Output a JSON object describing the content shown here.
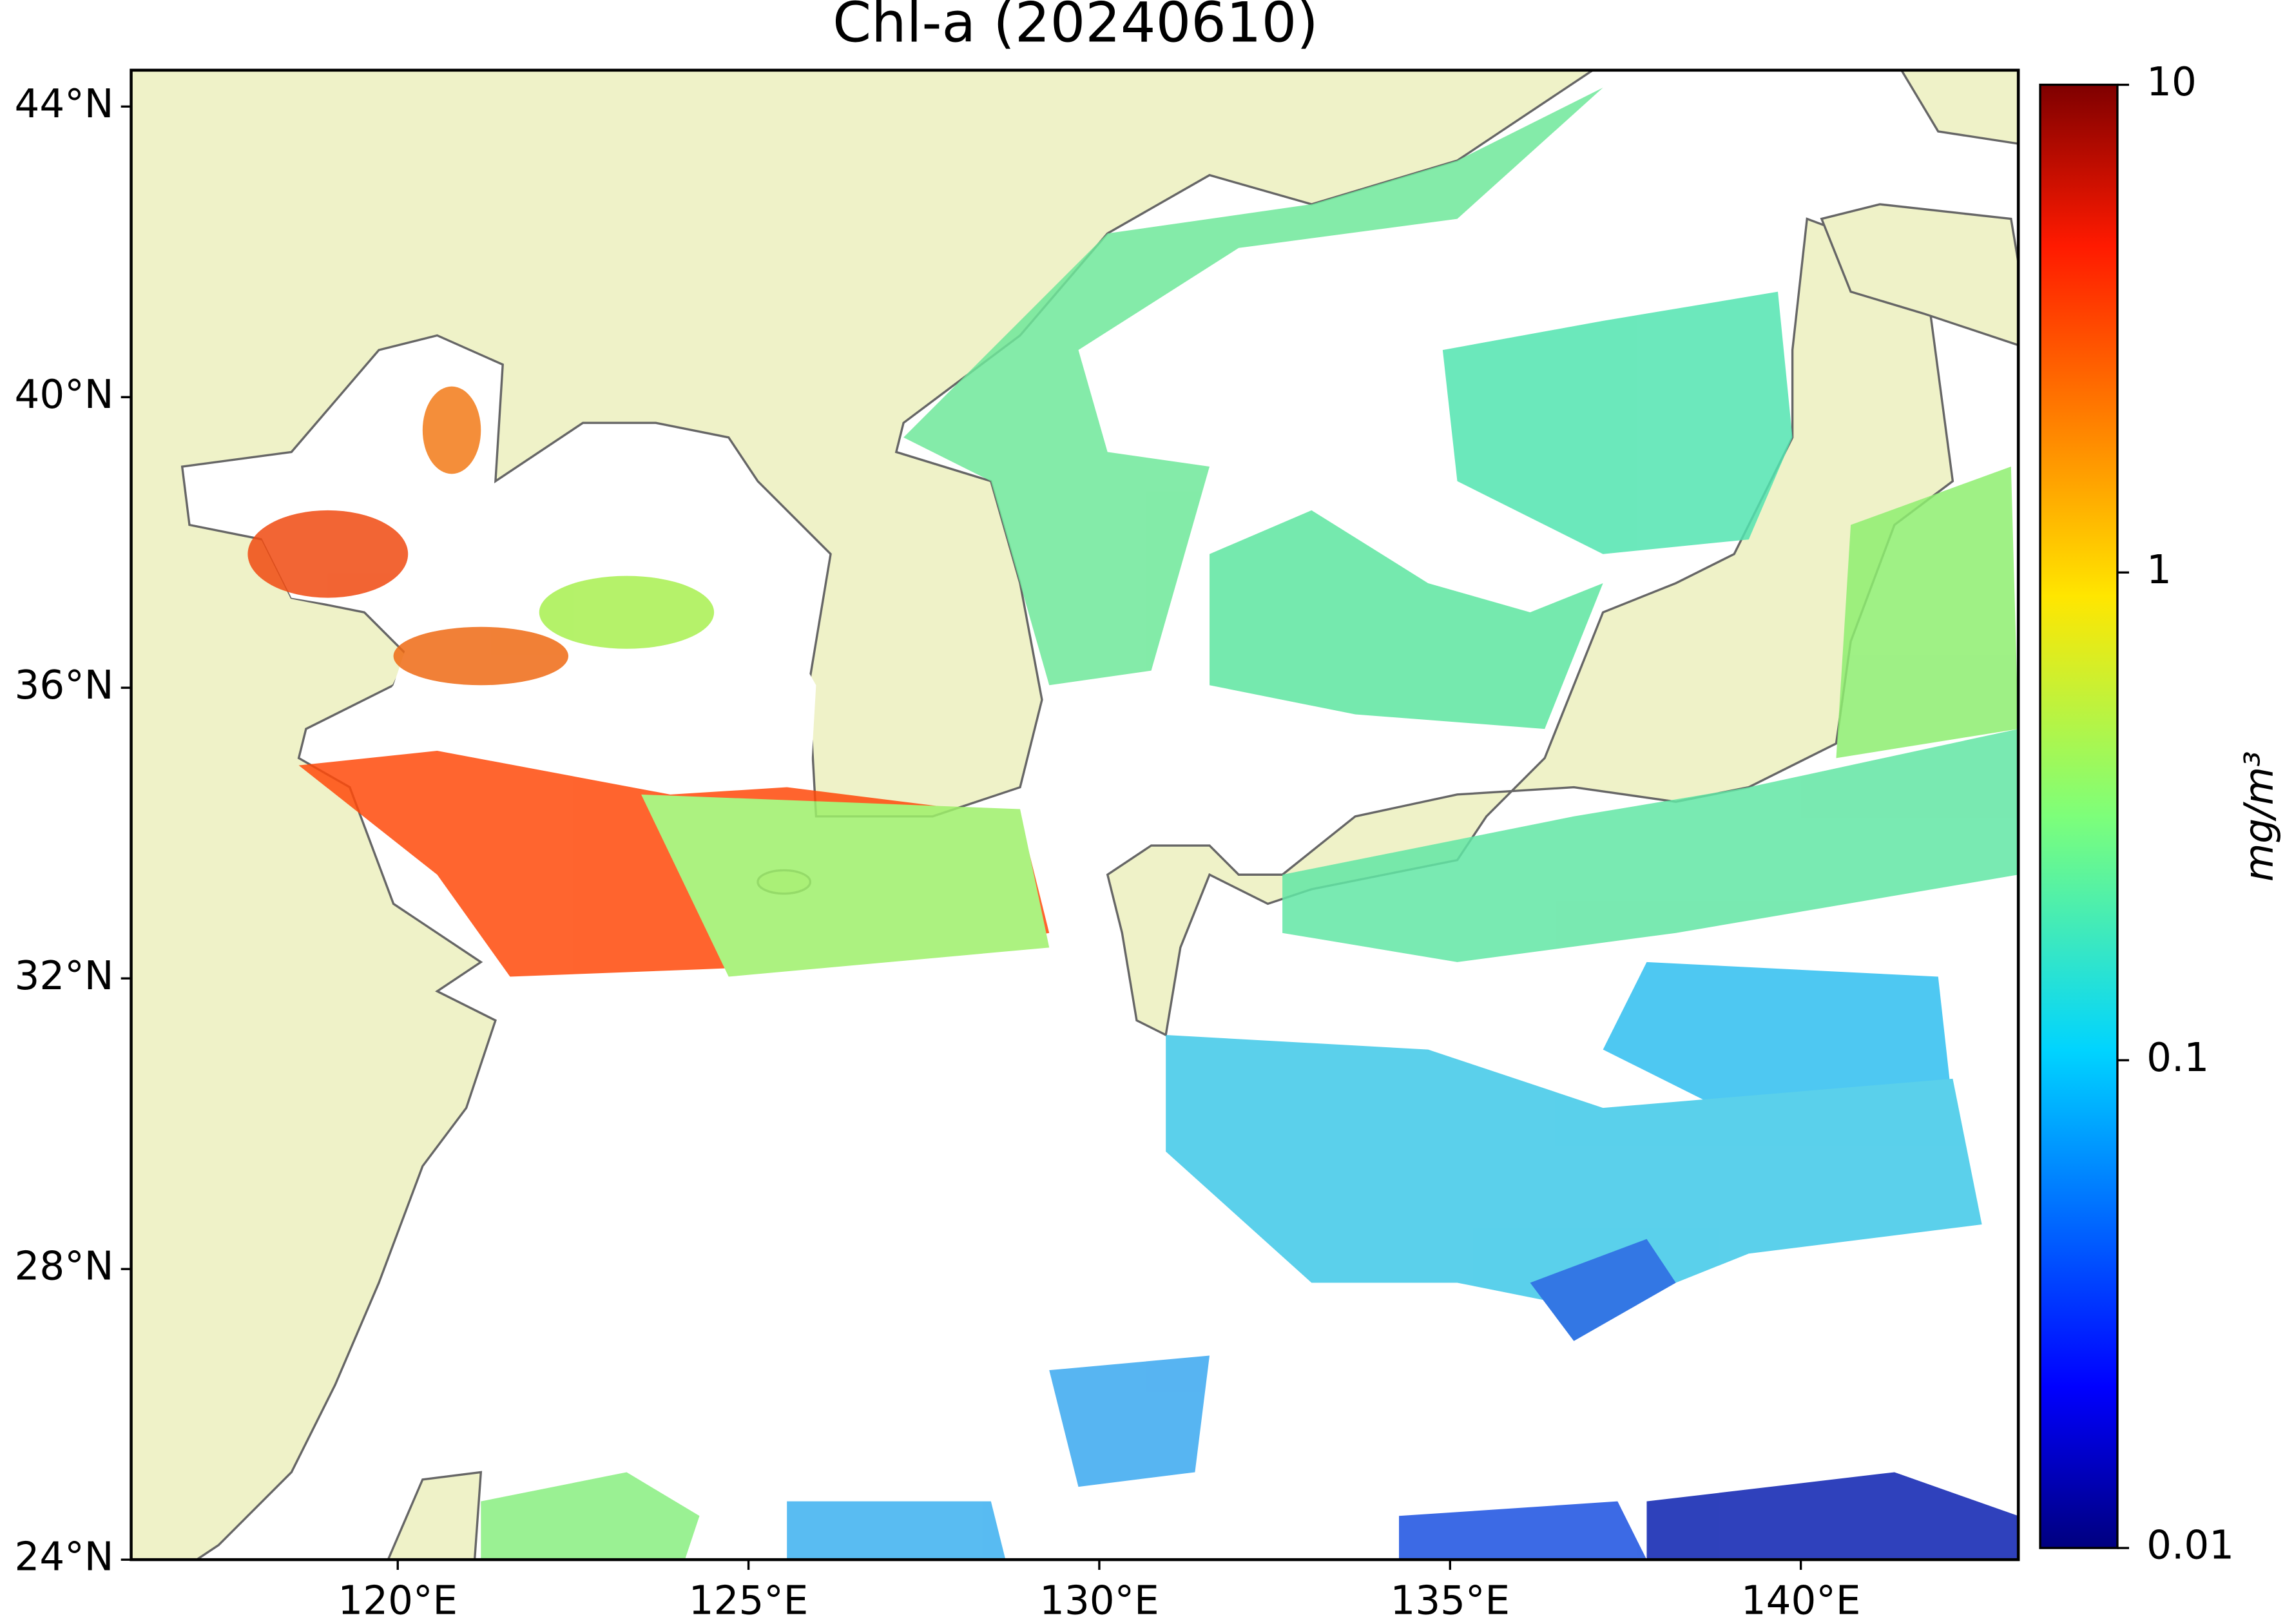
{
  "chart_data": {
    "type": "map",
    "title": "Chl-a (20240610)",
    "xlim": [
      116.2,
      143.1
    ],
    "ylim": [
      24,
      44.5
    ],
    "xticks": [
      {
        "value": 120,
        "label": "120°E"
      },
      {
        "value": 125,
        "label": "125°E"
      },
      {
        "value": 130,
        "label": "130°E"
      },
      {
        "value": 135,
        "label": "135°E"
      },
      {
        "value": 140,
        "label": "140°E"
      }
    ],
    "yticks": [
      {
        "value": 24,
        "label": "24°N"
      },
      {
        "value": 28,
        "label": "28°N"
      },
      {
        "value": 32,
        "label": "32°N"
      },
      {
        "value": 36,
        "label": "36°N"
      },
      {
        "value": 40,
        "label": "40°N"
      },
      {
        "value": 44,
        "label": "44°N"
      }
    ],
    "colorbar": {
      "label": "mg/m³",
      "log": true,
      "lim": [
        0.01,
        10
      ],
      "ticks": [
        0.01,
        0.1,
        1,
        10
      ]
    }
  }
}
